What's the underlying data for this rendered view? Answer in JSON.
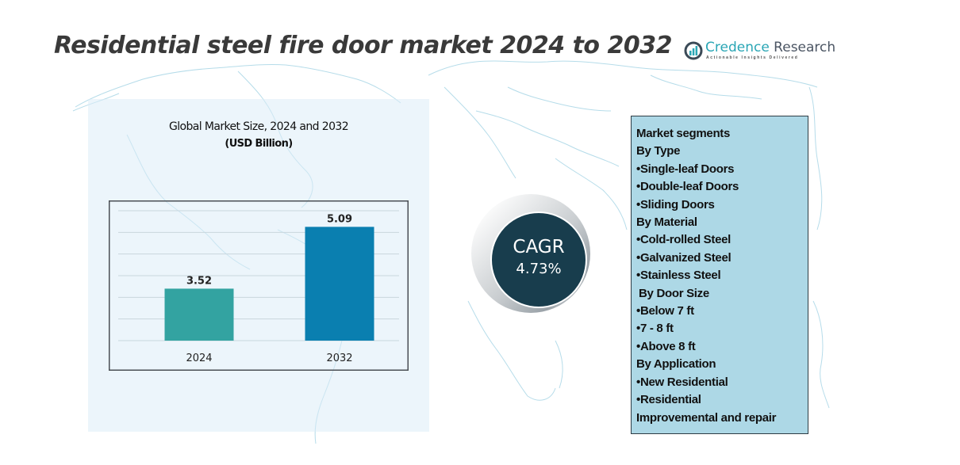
{
  "header": {
    "title": "Residential steel fire door market 2024 to 2032",
    "logo": {
      "icon": "bar-chart-circle-icon",
      "name_part1": "Credence",
      "name_part2": " Research",
      "tagline": "Actionable Insights Delivered"
    }
  },
  "colors": {
    "bar_2024": "#33a3a1",
    "bar_2032": "#0a7fb0",
    "cagr_circle": "#183d4d",
    "segments_bg": "#add8e6",
    "map_lines": "#9fd1e3",
    "title_text": "#3a3a3a",
    "logo_accent": "#2aa6b5"
  },
  "chart_data": {
    "type": "bar",
    "title": "Global Market Size, 2024 and 2032",
    "subtitle": "(USD Billion)",
    "categories": [
      "2024",
      "2032"
    ],
    "values": [
      3.52,
      5.09
    ],
    "value_labels": [
      "3.52",
      "5.09"
    ],
    "colors": [
      "#33a3a1",
      "#0a7fb0"
    ],
    "xlabel": "",
    "ylabel": "",
    "ylim": [
      2.2,
      5.5
    ],
    "grid": true,
    "gridline_count": 7,
    "legend": "none"
  },
  "cagr": {
    "label": "CAGR",
    "value": "4.73%"
  },
  "segments": {
    "lines": [
      {
        "text": "Market segments",
        "type": "heading"
      },
      {
        "text": "By Type",
        "type": "heading"
      },
      {
        "text": "•Single-leaf Doors",
        "type": "item"
      },
      {
        "text": "•Double-leaf Doors",
        "type": "item"
      },
      {
        "text": "•Sliding Doors",
        "type": "item"
      },
      {
        "text": "By Material",
        "type": "heading"
      },
      {
        "text": "•Cold-rolled Steel",
        "type": "item"
      },
      {
        "text": "•Galvanized Steel",
        "type": "item"
      },
      {
        "text": "•Stainless Steel",
        "type": "item"
      },
      {
        "text": "By Door Size",
        "type": "heading-indent"
      },
      {
        "text": "•Below 7 ft",
        "type": "item"
      },
      {
        "text": "•7 - 8 ft",
        "type": "item"
      },
      {
        "text": "•Above 8 ft",
        "type": "item"
      },
      {
        "text": "By Application",
        "type": "heading"
      },
      {
        "text": "•New Residential",
        "type": "item"
      },
      {
        "text": "•Residential",
        "type": "item"
      },
      {
        "text": "Improvemental and repair",
        "type": "item"
      }
    ]
  }
}
